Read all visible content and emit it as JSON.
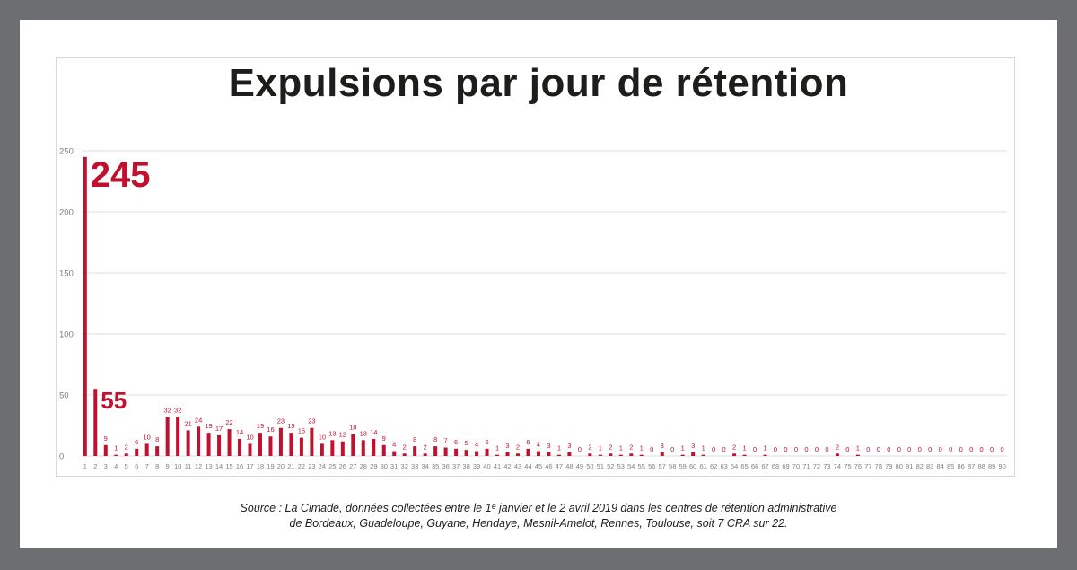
{
  "title": "Expulsions par jour de rétention",
  "source": {
    "line1": "Source : La Cimade, données collectées entre le 1ᵉ janvier et le 2 avril 2019 dans les centres de rétention administrative",
    "line2": "de Bordeaux, Guadeloupe, Guyane, Hendaye, Mesnil-Amelot, Rennes, Toulouse, soit 7 CRA sur 22."
  },
  "colors": {
    "bar": "#c1112f",
    "label": "#c1112f",
    "grid": "#dcdcdc",
    "tick": "#808080",
    "background": "#6d6e71"
  },
  "chart_data": {
    "type": "bar",
    "title": "Expulsions par jour de rétention",
    "xlabel": "",
    "ylabel": "",
    "ylim": [
      0,
      250
    ],
    "yticks": [
      0,
      50,
      100,
      150,
      200,
      250
    ],
    "grid": true,
    "categories": [
      "1",
      "2",
      "3",
      "4",
      "5",
      "6",
      "7",
      "8",
      "9",
      "10",
      "11",
      "12",
      "13",
      "14",
      "15",
      "16",
      "17",
      "18",
      "19",
      "20",
      "21",
      "22",
      "23",
      "24",
      "25",
      "26",
      "27",
      "28",
      "29",
      "30",
      "31",
      "32",
      "33",
      "34",
      "35",
      "36",
      "37",
      "38",
      "39",
      "40",
      "41",
      "42",
      "43",
      "44",
      "45",
      "46",
      "47",
      "48",
      "49",
      "50",
      "51",
      "52",
      "53",
      "54",
      "55",
      "56",
      "57",
      "58",
      "59",
      "60",
      "61",
      "62",
      "63",
      "64",
      "65",
      "66",
      "67",
      "68",
      "69",
      "70",
      "71",
      "72",
      "73",
      "74",
      "75",
      "76",
      "77",
      "78",
      "79",
      "80",
      "81",
      "82",
      "83",
      "84",
      "85",
      "86",
      "87",
      "88",
      "89",
      "90"
    ],
    "values": [
      245,
      55,
      9,
      1,
      2,
      6,
      10,
      8,
      32,
      32,
      21,
      24,
      19,
      17,
      22,
      14,
      10,
      19,
      16,
      23,
      19,
      15,
      23,
      10,
      13,
      12,
      18,
      13,
      14,
      9,
      4,
      2,
      8,
      2,
      8,
      7,
      6,
      5,
      4,
      6,
      1,
      3,
      2,
      6,
      4,
      3,
      1,
      3,
      0,
      2,
      1,
      2,
      1,
      2,
      1,
      0,
      3,
      0,
      1,
      3,
      1,
      0,
      0,
      2,
      1,
      0,
      1,
      0,
      0,
      0,
      0,
      0,
      0,
      2,
      0,
      1,
      0,
      0,
      0,
      0,
      0,
      0,
      0,
      0,
      0,
      0,
      0,
      0,
      0,
      0
    ],
    "highlighted_labels": [
      0,
      1
    ]
  }
}
